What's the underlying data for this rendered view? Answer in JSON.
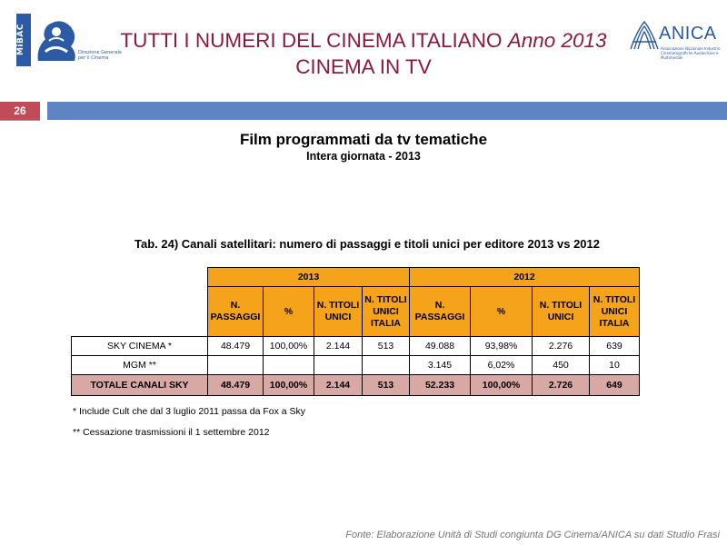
{
  "header": {
    "logo_left": {
      "vertical_text": "MiBAC",
      "dg_lines": [
        "Direzione Generale",
        "per il Cinema"
      ]
    },
    "title_line1_main": "TUTTI I NUMERI DEL CINEMA ITALIANO ",
    "title_line1_italic": "Anno 2013",
    "title_line2": "CINEMA IN TV",
    "logo_right": {
      "name": "ANICA",
      "subtitle": "Associazione Nazionale Industrie Cinematografiche Audiovisive e Multimediali"
    }
  },
  "page_number": "26",
  "headings": {
    "main": "Film programmati da tv tematiche",
    "sub": "Intera giornata - 2013"
  },
  "table_caption": "Tab. 24) Canali satellitari: numero di passaggi e titoli unici  per editore 2013 vs 2012",
  "table": {
    "years": [
      "2013",
      "2012"
    ],
    "columns": [
      "N. PASSAGGI",
      "%",
      "N. TITOLI UNICI",
      "N. TITOLI UNICI ITALIA",
      "N. PASSAGGI",
      "%",
      "N. TITOLI UNICI",
      "N. TITOLI UNICI ITALIA"
    ],
    "rows": [
      {
        "name": "SKY CINEMA *",
        "cells": [
          "48.479",
          "100,00%",
          "2.144",
          "513",
          "49.088",
          "93,98%",
          "2.276",
          "639"
        ]
      },
      {
        "name": "MGM **",
        "cells": [
          "",
          "",
          "",
          "",
          "3.145",
          "6,02%",
          "450",
          "10"
        ]
      }
    ],
    "total": {
      "name": "TOTALE CANALI SKY",
      "cells": [
        "48.479",
        "100,00%",
        "2.144",
        "513",
        "52.233",
        "100,00%",
        "2.726",
        "649"
      ]
    }
  },
  "footnotes": [
    "* Include  Cult che dal 3 luglio 2011 passa da Fox a Sky",
    "** Cessazione trasmissioni il 1 settembre 2012"
  ],
  "source": "Fonte: Elaborazione Unità di Studi congiunta DG Cinema/ANICA su dati Studio Frasi",
  "colors": {
    "title": "#8b1a3c",
    "band": "#5f84c2",
    "page_badge": "#c14b56",
    "table_header": "#f5a31a",
    "total_row": "#d8a8a5",
    "logo_blue": "#2d5aa6"
  }
}
